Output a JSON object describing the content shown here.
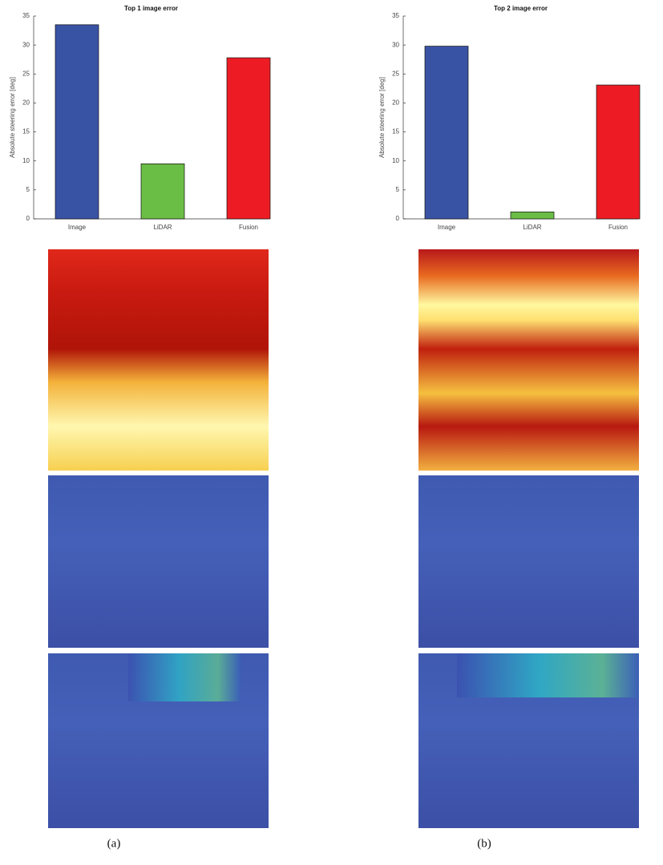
{
  "chart_data": [
    {
      "type": "bar",
      "title": "Top 1 image error",
      "y_label": "Absolute steering error [deg]",
      "categories": [
        "Image",
        "LiDAR",
        "Fusion"
      ],
      "values": [
        33.5,
        9.5,
        27.8
      ],
      "colors": [
        "#3953a4",
        "#6abd45",
        "#ed1c24"
      ],
      "ylim": [
        0,
        35
      ],
      "yticks": [
        0,
        5,
        10,
        15,
        20,
        25,
        30,
        35
      ]
    },
    {
      "type": "bar",
      "title": "Top 2 image error",
      "y_label": "Absolute steering error [deg]",
      "categories": [
        "Image",
        "LiDAR",
        "Fusion"
      ],
      "values": [
        29.8,
        1.2,
        23.1
      ],
      "colors": [
        "#3953a4",
        "#6abd45",
        "#ed1c24"
      ],
      "ylim": [
        0,
        35
      ],
      "yticks": [
        0,
        5,
        10,
        15,
        20,
        25,
        30,
        35
      ]
    }
  ],
  "captions": [
    "(a)",
    "(b)"
  ]
}
